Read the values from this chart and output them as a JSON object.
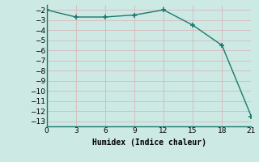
{
  "x": [
    0,
    3,
    6,
    9,
    12,
    15,
    18,
    21
  ],
  "y": [
    -2,
    -2.7,
    -2.7,
    -2.5,
    -2,
    -3.5,
    -5.5,
    -12.5
  ],
  "xlabel": "Humidex (Indice chaleur)",
  "ylabel": "",
  "xlim": [
    0,
    21
  ],
  "ylim": [
    -13.5,
    -1.5
  ],
  "xticks": [
    0,
    3,
    6,
    9,
    12,
    15,
    18,
    21
  ],
  "yticks": [
    -13,
    -12,
    -11,
    -10,
    -9,
    -8,
    -7,
    -6,
    -5,
    -4,
    -3,
    -2
  ],
  "bg_color": "#cce9e4",
  "grid_color": "#d8b8bc",
  "line_color": "#1a7a6e",
  "marker": "+",
  "marker_size": 5,
  "line_width": 1.0
}
